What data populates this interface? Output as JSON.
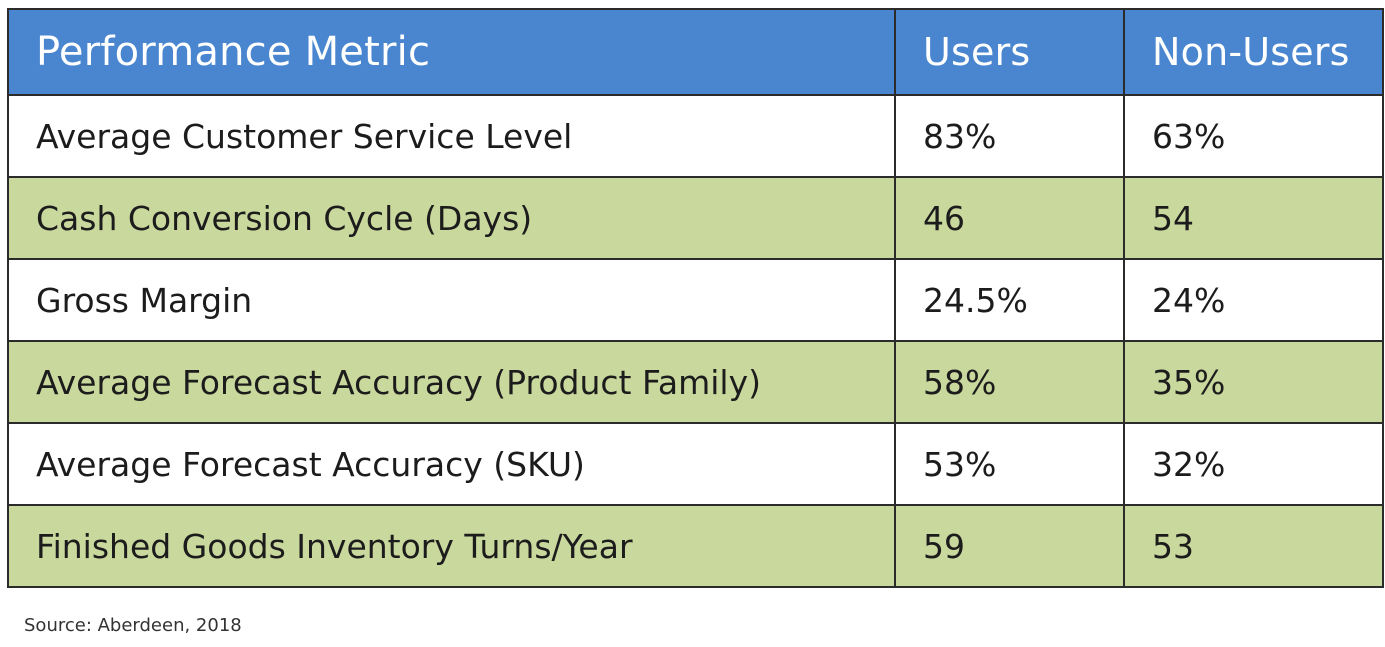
{
  "chart_data": {
    "type": "table",
    "columns": [
      "Performance Metric",
      "Users",
      "Non-Users"
    ],
    "rows": [
      [
        "Average Customer Service Level",
        "83%",
        "63%"
      ],
      [
        "Cash Conversion Cycle (Days)",
        "46",
        "54"
      ],
      [
        "Gross Margin",
        "24.5%",
        "24%"
      ],
      [
        "Average Forecast Accuracy (Product Family)",
        "58%",
        "35%"
      ],
      [
        "Average Forecast Accuracy (SKU)",
        "53%",
        "32%"
      ],
      [
        "Finished Goods Inventory Turns/Year",
        "59",
        "53"
      ]
    ],
    "colors": {
      "header_bg": "#4a86d0",
      "header_text": "#ffffff",
      "row_alt_bg": "#c9d89d",
      "row_bg": "#ffffff",
      "border": "#2b2b2b"
    }
  },
  "source": "Source: Aberdeen, 2018"
}
